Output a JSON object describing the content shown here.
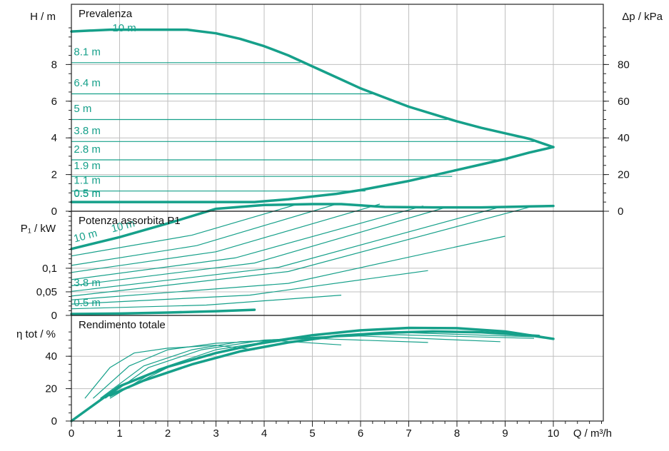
{
  "chart_data": [
    {
      "type": "line",
      "title": "Prevalenza",
      "xlabel": "Q / m³/h",
      "ylabel": "H / m",
      "ylabel_right": "Δp / kPa",
      "xlim": [
        0,
        10
      ],
      "ylim": [
        0,
        10
      ],
      "ylim_right": [
        0,
        100
      ],
      "x_ticks": [
        "0",
        "1",
        "2",
        "3",
        "4",
        "5",
        "6",
        "7",
        "8",
        "9",
        "10"
      ],
      "y_ticks": [
        "0",
        "2",
        "4",
        "6",
        "8"
      ],
      "y_ticks_right": [
        "0",
        "20",
        "40",
        "60",
        "80"
      ],
      "grid": true,
      "series": [
        {
          "name": "10 m",
          "style": "thick",
          "x": [
            0,
            0.8,
            1.5,
            2.4,
            3.0,
            3.5,
            4.0,
            4.5,
            5.0,
            5.5,
            6.0,
            6.5,
            7.0,
            7.5,
            8.0,
            8.5,
            9.0,
            9.5,
            10.0
          ],
          "y": [
            9.8,
            9.9,
            9.9,
            9.9,
            9.7,
            9.4,
            9.0,
            8.5,
            7.9,
            7.3,
            6.7,
            6.2,
            5.7,
            5.3,
            4.9,
            4.55,
            4.25,
            3.95,
            3.5
          ]
        },
        {
          "name": "min",
          "style": "thick",
          "x": [
            0,
            1,
            2,
            3,
            3.8,
            4.5,
            5,
            5.5,
            6,
            6.5,
            7,
            7.5,
            8,
            8.5,
            9,
            9.5,
            10
          ],
          "y": [
            0.5,
            0.5,
            0.5,
            0.5,
            0.5,
            0.65,
            0.8,
            0.95,
            1.15,
            1.4,
            1.65,
            1.95,
            2.25,
            2.55,
            2.85,
            3.2,
            3.5
          ]
        },
        {
          "name": "8.1 m",
          "style": "thin",
          "x": [
            0,
            4.75
          ],
          "y": [
            8.1,
            8.1
          ]
        },
        {
          "name": "6.4 m",
          "style": "thin",
          "x": [
            0,
            6.25
          ],
          "y": [
            6.4,
            6.4
          ]
        },
        {
          "name": "5 m",
          "style": "thin",
          "x": [
            0,
            7.8
          ],
          "y": [
            5.0,
            5.0
          ]
        },
        {
          "name": "3.8 m",
          "style": "thin",
          "x": [
            0,
            9.6
          ],
          "y": [
            3.8,
            3.8
          ]
        },
        {
          "name": "2.8 m",
          "style": "thin",
          "x": [
            0,
            9.05
          ],
          "y": [
            2.8,
            2.8
          ]
        },
        {
          "name": "1.9 m",
          "style": "thin",
          "x": [
            0,
            7.9
          ],
          "y": [
            1.9,
            1.9
          ]
        },
        {
          "name": "1.1 m",
          "style": "thin",
          "x": [
            0,
            6.1
          ],
          "y": [
            1.1,
            1.1
          ]
        },
        {
          "name": "0.5 m",
          "style": "thin",
          "x": [
            0,
            3.8
          ],
          "y": [
            0.5,
            0.5
          ]
        }
      ],
      "labels": [
        {
          "text": "10 m",
          "x": 0.85,
          "y": 9.8
        },
        {
          "text": "8.1 m",
          "x": 0.05,
          "y": 8.5
        },
        {
          "text": "6.4 m",
          "x": 0.05,
          "y": 6.8
        },
        {
          "text": "5 m",
          "x": 0.05,
          "y": 5.4
        },
        {
          "text": "3.8 m",
          "x": 0.05,
          "y": 4.2
        },
        {
          "text": "2.8 m",
          "x": 0.05,
          "y": 3.2
        },
        {
          "text": "1.9 m",
          "x": 0.05,
          "y": 2.3
        },
        {
          "text": "1.1 m",
          "x": 0.05,
          "y": 1.5
        },
        {
          "text": "0.5 m",
          "x": 0.05,
          "y": 0.8
        },
        {
          "text": "0.5 m",
          "x": 0.05,
          "y": 0.78
        }
      ]
    },
    {
      "type": "line",
      "title": "Potenza assorbita P1",
      "ylabel": "P₁ / kW",
      "xlim": [
        0,
        10
      ],
      "ylim": [
        0,
        0.25
      ],
      "y_ticks": [
        "0",
        "0,05",
        "0,1"
      ],
      "grid": true,
      "series": [
        {
          "name": "10 m (max)",
          "style": "thick",
          "x": [
            0,
            1,
            2,
            3,
            4,
            5,
            5.6,
            6.5,
            7.5,
            8.5,
            9.0,
            9.5,
            10.0
          ],
          "y": [
            0.141,
            0.166,
            0.195,
            0.226,
            0.234,
            0.236,
            0.236,
            0.23,
            0.229,
            0.229,
            0.23,
            0.231,
            0.232
          ]
        },
        {
          "name": "0.5 m (min)",
          "style": "thick",
          "x": [
            0,
            1,
            2,
            3,
            3.8
          ],
          "y": [
            0.003,
            0.004,
            0.006,
            0.009,
            0.012
          ]
        },
        {
          "name": "t1",
          "style": "thin",
          "x": [
            0,
            2.5,
            4.7
          ],
          "y": [
            0.126,
            0.17,
            0.236
          ]
        },
        {
          "name": "t2",
          "style": "thin",
          "x": [
            0,
            2.6,
            5.5
          ],
          "y": [
            0.106,
            0.148,
            0.236
          ]
        },
        {
          "name": "t3",
          "style": "thin",
          "x": [
            0,
            3.0,
            6.4
          ],
          "y": [
            0.091,
            0.135,
            0.236
          ]
        },
        {
          "name": "t4",
          "style": "thin",
          "x": [
            0,
            3.4,
            7.3
          ],
          "y": [
            0.076,
            0.122,
            0.232
          ]
        },
        {
          "name": "t5",
          "style": "thin",
          "x": [
            0,
            3.8,
            7.8
          ],
          "y": [
            0.063,
            0.111,
            0.23
          ]
        },
        {
          "name": "t6",
          "style": "thin",
          "x": [
            0,
            4.3,
            8.9
          ],
          "y": [
            0.051,
            0.102,
            0.23
          ]
        },
        {
          "name": "t7",
          "style": "thin",
          "x": [
            0,
            4.5,
            9.6
          ],
          "y": [
            0.041,
            0.093,
            0.232
          ]
        },
        {
          "name": "t8",
          "style": "thin",
          "x": [
            0,
            4.5,
            9.0
          ],
          "y": [
            0.033,
            0.068,
            0.168
          ]
        },
        {
          "name": "t9",
          "style": "thin",
          "x": [
            0,
            3.7,
            7.4
          ],
          "y": [
            0.024,
            0.043,
            0.095
          ]
        },
        {
          "name": "t10",
          "style": "thin",
          "x": [
            0,
            2.8,
            5.6
          ],
          "y": [
            0.014,
            0.022,
            0.043
          ]
        }
      ],
      "labels": [
        {
          "text": "10 m",
          "x": 0.07,
          "y": 0.155,
          "rotate": -15
        },
        {
          "text": "10 m",
          "x": 0.85,
          "y": 0.176,
          "rotate": -15
        },
        {
          "text": "3.8 m",
          "x": 0.05,
          "y": 0.062
        },
        {
          "text": "0.5 m",
          "x": 0.05,
          "y": 0.02
        }
      ]
    },
    {
      "type": "line",
      "title": "Rendimento totale",
      "ylabel": "η tot / %",
      "xlim": [
        0,
        10
      ],
      "ylim": [
        0,
        58
      ],
      "y_ticks": [
        "0",
        "20",
        "40"
      ],
      "grid": true,
      "series": [
        {
          "name": "envelope",
          "style": "thick",
          "x": [
            0,
            1,
            2,
            3,
            4,
            5,
            6,
            7,
            8,
            9,
            10
          ],
          "y": [
            0,
            21.5,
            33.5,
            42,
            48.5,
            53,
            56,
            57.5,
            57.3,
            55.3,
            50.7
          ]
        },
        {
          "name": "low",
          "style": "thick",
          "x": [
            0.8,
            1.5,
            2.5,
            3.5,
            4.5,
            5.5,
            6.5,
            7.5,
            8.5,
            9.7
          ],
          "y": [
            16,
            25,
            35,
            43,
            48.5,
            52.5,
            54.5,
            55.3,
            54.8,
            52.5
          ]
        },
        {
          "name": "e1",
          "style": "thin",
          "x": [
            0.28,
            0.8,
            1.3,
            2.0,
            3.0,
            3.8
          ],
          "y": [
            14,
            33,
            42,
            45,
            46.8,
            44
          ]
        },
        {
          "name": "e2",
          "style": "thin",
          "x": [
            0.45,
            1.2,
            2.0,
            3.0,
            4.2,
            5.6
          ],
          "y": [
            14,
            34,
            44,
            48,
            49.7,
            47
          ]
        },
        {
          "name": "e3",
          "style": "thin",
          "x": [
            0.6,
            1.5,
            2.5,
            3.5,
            5.0,
            7.4
          ],
          "y": [
            14,
            34,
            44,
            49,
            51,
            48.5
          ]
        },
        {
          "name": "e4",
          "style": "thin",
          "x": [
            0.7,
            1.6,
            2.7,
            4.0,
            6.0,
            8.9
          ],
          "y": [
            14,
            33,
            44,
            50,
            52.5,
            49
          ]
        },
        {
          "name": "e5",
          "style": "thin",
          "x": [
            0.8,
            1.8,
            3.0,
            4.5,
            6.5,
            9.6
          ],
          "y": [
            14,
            32,
            44,
            51,
            53.5,
            51
          ]
        },
        {
          "name": "e6",
          "style": "thin",
          "x": [
            0.8,
            2.0,
            3.3,
            4.8,
            7.0,
            9.6
          ],
          "y": [
            15,
            33,
            44.5,
            51.5,
            54.5,
            52
          ]
        }
      ],
      "labels": []
    }
  ]
}
